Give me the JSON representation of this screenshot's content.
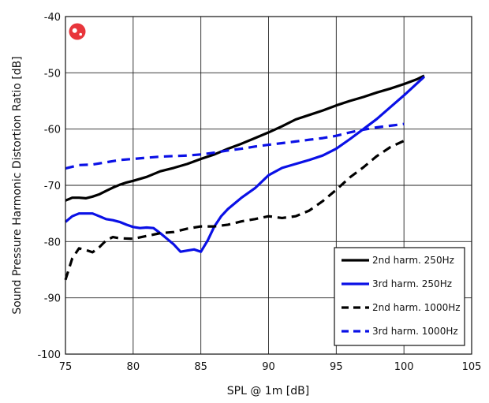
{
  "chart_data": {
    "type": "line",
    "title": "",
    "xlabel": "SPL @ 1m [dB]",
    "ylabel": "Sound Pressure Harmonic Distortion Ratio [dB]",
    "xlim": [
      75,
      105
    ],
    "ylim": [
      -100,
      -40
    ],
    "x_ticks": [
      75,
      80,
      85,
      90,
      95,
      100,
      105
    ],
    "y_ticks": [
      -40,
      -50,
      -60,
      -70,
      -80,
      -90,
      -100
    ],
    "grid": true,
    "legend_position": "bottom-right",
    "series": [
      {
        "name": "2nd harm. 250Hz",
        "color": "#000000",
        "dash": "solid",
        "x": [
          75.0,
          75.5,
          76.0,
          76.5,
          77.0,
          77.5,
          78.0,
          78.5,
          79.0,
          79.5,
          80.0,
          81.0,
          82.0,
          83.0,
          84.0,
          85.0,
          86.0,
          87.0,
          88.0,
          89.0,
          90.0,
          91.0,
          92.0,
          93.0,
          94.0,
          95.0,
          96.0,
          97.0,
          98.0,
          99.0,
          100.0,
          101.0,
          101.5
        ],
        "values": [
          -72.7,
          -72.2,
          -72.2,
          -72.3,
          -72.0,
          -71.6,
          -71.0,
          -70.4,
          -69.9,
          -69.5,
          -69.2,
          -68.5,
          -67.5,
          -66.9,
          -66.2,
          -65.3,
          -64.5,
          -63.5,
          -62.6,
          -61.6,
          -60.6,
          -59.5,
          -58.3,
          -57.5,
          -56.7,
          -55.8,
          -55.0,
          -54.3,
          -53.5,
          -52.8,
          -52.0,
          -51.1,
          -50.5
        ]
      },
      {
        "name": "3rd harm. 250Hz",
        "color": "#0a10e6",
        "dash": "solid",
        "x": [
          75.0,
          75.5,
          76.0,
          76.5,
          77.0,
          77.5,
          78.0,
          78.5,
          79.0,
          79.5,
          80.0,
          80.5,
          81.0,
          81.5,
          82.0,
          82.5,
          83.0,
          83.5,
          84.0,
          84.5,
          85.0,
          85.5,
          86.0,
          86.5,
          87.0,
          88.0,
          89.0,
          90.0,
          91.0,
          92.0,
          93.0,
          94.0,
          95.0,
          96.0,
          97.0,
          98.0,
          99.0,
          100.0,
          101.0,
          101.5
        ],
        "values": [
          -76.5,
          -75.5,
          -75.0,
          -75.0,
          -75.0,
          -75.5,
          -76.0,
          -76.2,
          -76.5,
          -77.0,
          -77.4,
          -77.6,
          -77.5,
          -77.6,
          -78.5,
          -79.5,
          -80.5,
          -81.8,
          -81.6,
          -81.4,
          -81.8,
          -79.8,
          -77.3,
          -75.5,
          -74.2,
          -72.2,
          -70.5,
          -68.2,
          -66.9,
          -66.2,
          -65.5,
          -64.7,
          -63.5,
          -61.8,
          -60.0,
          -58.2,
          -56.1,
          -54.0,
          -51.8,
          -50.7
        ]
      },
      {
        "name": "2nd harm. 1000Hz",
        "color": "#000000",
        "dash": "dashed",
        "x": [
          75.0,
          75.5,
          76.0,
          76.5,
          77.0,
          77.5,
          78.0,
          78.5,
          79.0,
          80.0,
          81.0,
          82.0,
          83.0,
          84.0,
          85.0,
          86.0,
          87.0,
          88.0,
          89.0,
          90.0,
          91.0,
          92.0,
          93.0,
          94.0,
          95.0,
          96.0,
          97.0,
          98.0,
          99.0,
          100.0
        ],
        "values": [
          -86.8,
          -83.0,
          -81.2,
          -81.5,
          -81.9,
          -81.0,
          -79.8,
          -79.2,
          -79.4,
          -79.5,
          -79.0,
          -78.5,
          -78.3,
          -77.7,
          -77.3,
          -77.3,
          -77.0,
          -76.4,
          -76.0,
          -75.5,
          -75.8,
          -75.5,
          -74.5,
          -72.8,
          -70.8,
          -68.6,
          -66.8,
          -64.8,
          -63.2,
          -62.1
        ]
      },
      {
        "name": "3rd harm. 1000Hz",
        "color": "#0a10e6",
        "dash": "dashed",
        "x": [
          75.0,
          76.0,
          77.0,
          78.0,
          79.0,
          80.0,
          81.0,
          82.0,
          83.0,
          84.0,
          85.0,
          86.0,
          87.0,
          88.0,
          89.0,
          90.0,
          91.0,
          92.0,
          93.0,
          94.0,
          95.0,
          96.0,
          97.0,
          98.0,
          99.0,
          100.0
        ],
        "values": [
          -67.0,
          -66.4,
          -66.3,
          -65.9,
          -65.5,
          -65.3,
          -65.1,
          -64.9,
          -64.8,
          -64.7,
          -64.5,
          -64.2,
          -63.8,
          -63.5,
          -63.1,
          -62.8,
          -62.5,
          -62.2,
          -61.9,
          -61.6,
          -61.2,
          -60.6,
          -60.1,
          -59.7,
          -59.4,
          -59.1
        ]
      }
    ]
  },
  "logo": {
    "name": "brand-logo-icon",
    "color": "#e8353b"
  }
}
